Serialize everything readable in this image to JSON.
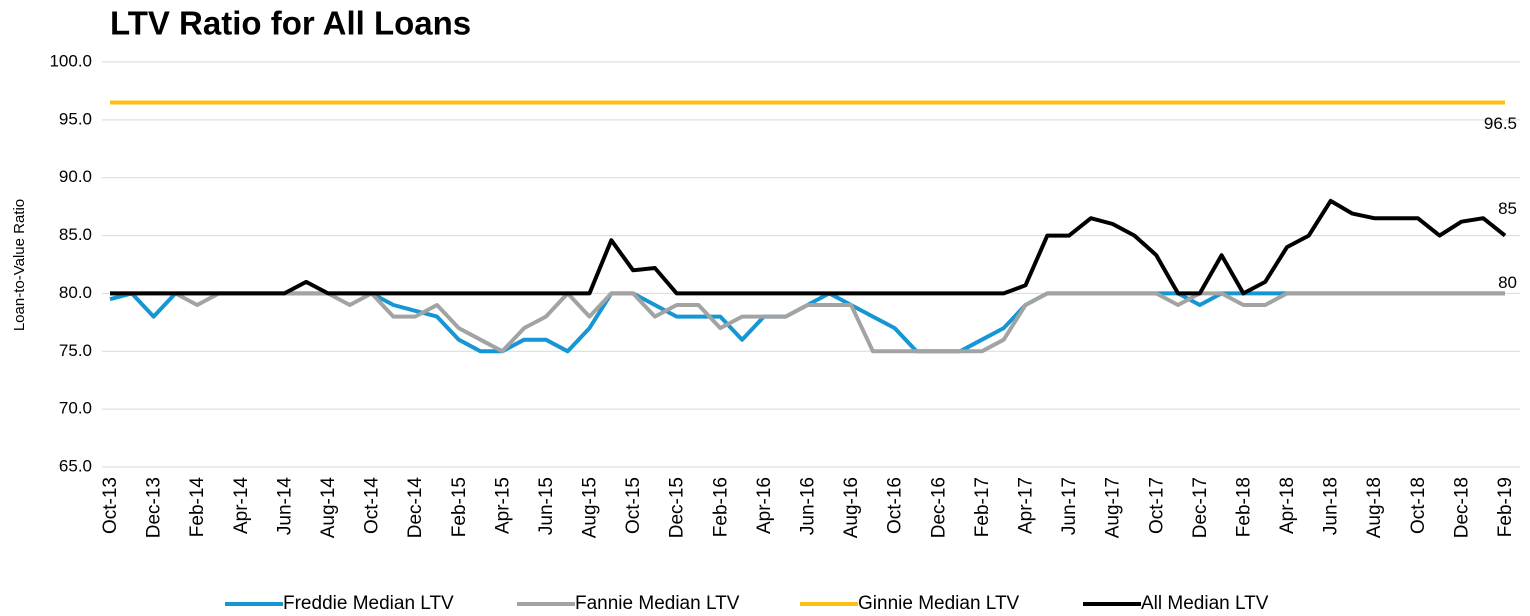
{
  "chart_data": {
    "type": "line",
    "title": "LTV Ratio for All Loans",
    "y_label": "Loan-to-Value Ratio",
    "categories": [
      "Oct-13",
      null,
      "Dec-13",
      null,
      "Feb-14",
      null,
      "Apr-14",
      null,
      "Jun-14",
      null,
      "Aug-14",
      null,
      "Oct-14",
      null,
      "Dec-14",
      null,
      "Feb-15",
      null,
      "Apr-15",
      null,
      "Jun-15",
      null,
      "Aug-15",
      null,
      "Oct-15",
      null,
      "Dec-15",
      null,
      "Feb-16",
      null,
      "Apr-16",
      null,
      "Jun-16",
      null,
      "Aug-16",
      null,
      "Oct-16",
      null,
      "Dec-16",
      null,
      "Feb-17",
      null,
      "Apr-17",
      null,
      "Jun-17",
      null,
      "Aug-17",
      null,
      "Oct-17",
      null,
      "Dec-17",
      null,
      "Feb-18",
      null,
      "Apr-18",
      null,
      "Jun-18",
      null,
      "Aug-18",
      null,
      "Oct-18",
      null,
      "Dec-18",
      null,
      "Feb-19"
    ],
    "series": [
      {
        "name": "Freddie Median LTV",
        "color": "#1696d2",
        "values": [
          79.5,
          80,
          78,
          80,
          80,
          80,
          80,
          80,
          80,
          80,
          80,
          80,
          80,
          79,
          78.5,
          78,
          76,
          75,
          75,
          76,
          76,
          75,
          77,
          80,
          80,
          79,
          78,
          78,
          78,
          76,
          78,
          78,
          79,
          80,
          79,
          78,
          77,
          75,
          75,
          75,
          76,
          77,
          79,
          80,
          80,
          80,
          80,
          80,
          80,
          80,
          79,
          80,
          80,
          80,
          80,
          80,
          80,
          80,
          80,
          80,
          80,
          80,
          80,
          80,
          80
        ]
      },
      {
        "name": "Fannie Median LTV",
        "color": "#a2a4a3",
        "values": [
          80,
          80,
          80,
          80,
          79,
          80,
          80,
          80,
          80,
          80,
          80,
          79,
          80,
          78,
          78,
          79,
          77,
          76,
          75,
          77,
          78,
          80,
          78,
          80,
          80,
          78,
          79,
          79,
          77,
          78,
          78,
          78,
          79,
          79,
          79,
          75,
          75,
          75,
          75,
          75,
          75,
          76,
          79,
          80,
          80,
          80,
          80,
          80,
          80,
          79,
          80,
          80,
          79,
          79,
          80,
          80,
          80,
          80,
          80,
          80,
          80,
          80,
          80,
          80,
          80
        ]
      },
      {
        "name": "Ginnie Median LTV",
        "color": "#fdbf11",
        "values": [
          96.5,
          96.5,
          96.5,
          96.5,
          96.5,
          96.5,
          96.5,
          96.5,
          96.5,
          96.5,
          96.5,
          96.5,
          96.5,
          96.5,
          96.5,
          96.5,
          96.5,
          96.5,
          96.5,
          96.5,
          96.5,
          96.5,
          96.5,
          96.5,
          96.5,
          96.5,
          96.5,
          96.5,
          96.5,
          96.5,
          96.5,
          96.5,
          96.5,
          96.5,
          96.5,
          96.5,
          96.5,
          96.5,
          96.5,
          96.5,
          96.5,
          96.5,
          96.5,
          96.5,
          96.5,
          96.5,
          96.5,
          96.5,
          96.5,
          96.5,
          96.5,
          96.5,
          96.5,
          96.5,
          96.5,
          96.5,
          96.5,
          96.5,
          96.5,
          96.5,
          96.5,
          96.5,
          96.5,
          96.5,
          96.5
        ]
      },
      {
        "name": "All Median LTV",
        "color": "#000000",
        "values": [
          80,
          80,
          80,
          80,
          80,
          80,
          80,
          80,
          80,
          81,
          80,
          80,
          80,
          80,
          80,
          80,
          80,
          80,
          80,
          80,
          80,
          80,
          80,
          84.6,
          82,
          82.2,
          80,
          80,
          80,
          80,
          80,
          80,
          80,
          80,
          80,
          80,
          80,
          80,
          80,
          80,
          80,
          80,
          80.7,
          85,
          85,
          86.5,
          86,
          85,
          83.3,
          80,
          80,
          83.3,
          80,
          81,
          84,
          85,
          88,
          86.9,
          86.5,
          86.5,
          86.5,
          85,
          86.2,
          86.5,
          85
        ]
      }
    ],
    "ylim": [
      65,
      100
    ],
    "yticks": [
      {
        "value": 65,
        "label": "65.0"
      },
      {
        "value": 70,
        "label": "70.0"
      },
      {
        "value": 75,
        "label": "75.0"
      },
      {
        "value": 80,
        "label": "80.0"
      },
      {
        "value": 85,
        "label": "85.0"
      },
      {
        "value": 90,
        "label": "90.0"
      },
      {
        "value": 95,
        "label": "95.0"
      },
      {
        "value": 100,
        "label": "100.0"
      }
    ],
    "grid": true,
    "legend": "bottom"
  }
}
